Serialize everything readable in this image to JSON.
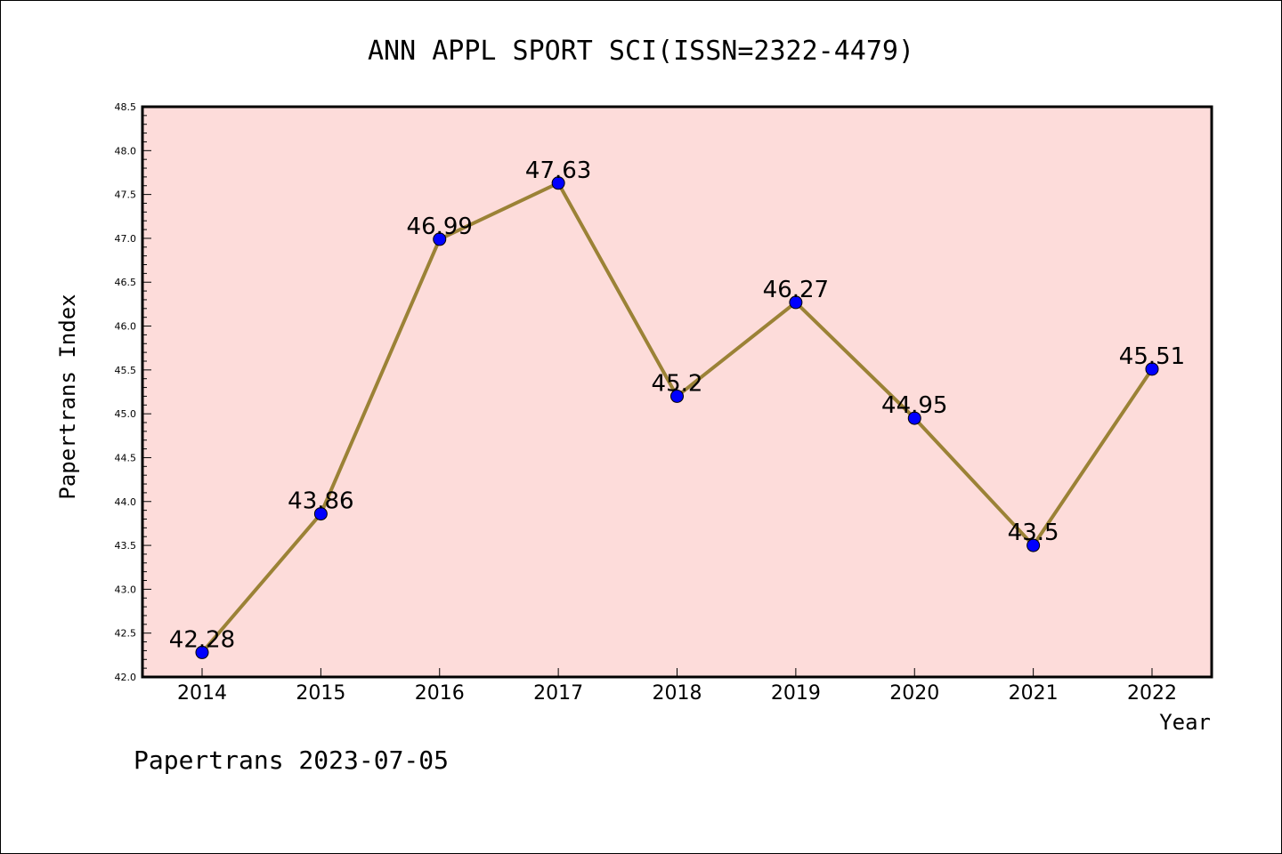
{
  "chart_data": {
    "type": "line",
    "title": "ANN APPL SPORT SCI(ISSN=2322-4479)",
    "xlabel": "Year",
    "ylabel": "Papertrans Index",
    "categories": [
      "2014",
      "2015",
      "2016",
      "2017",
      "2018",
      "2019",
      "2020",
      "2021",
      "2022"
    ],
    "series": [
      {
        "values": [
          42.28,
          43.86,
          46.99,
          47.63,
          45.2,
          46.27,
          44.95,
          43.5,
          45.51
        ],
        "labels": [
          "42.28",
          "43.86",
          "46.99",
          "47.63",
          "45.2",
          "46.27",
          "44.95",
          "43.5",
          "45.51"
        ]
      }
    ],
    "ylim": [
      42.0,
      48.5
    ],
    "yticks": [
      "42.0",
      "42.5",
      "43.0",
      "43.5",
      "44.0",
      "44.5",
      "45.0",
      "45.5",
      "46.0",
      "46.5",
      "47.0",
      "47.5",
      "48.0",
      "48.5"
    ],
    "grid": false,
    "legend": "none",
    "colors": {
      "plot_background": "#fddcda",
      "line": "#9b8236",
      "marker": "#0000ff",
      "axis": "#000000"
    }
  },
  "footer": "Papertrans 2023-07-05"
}
